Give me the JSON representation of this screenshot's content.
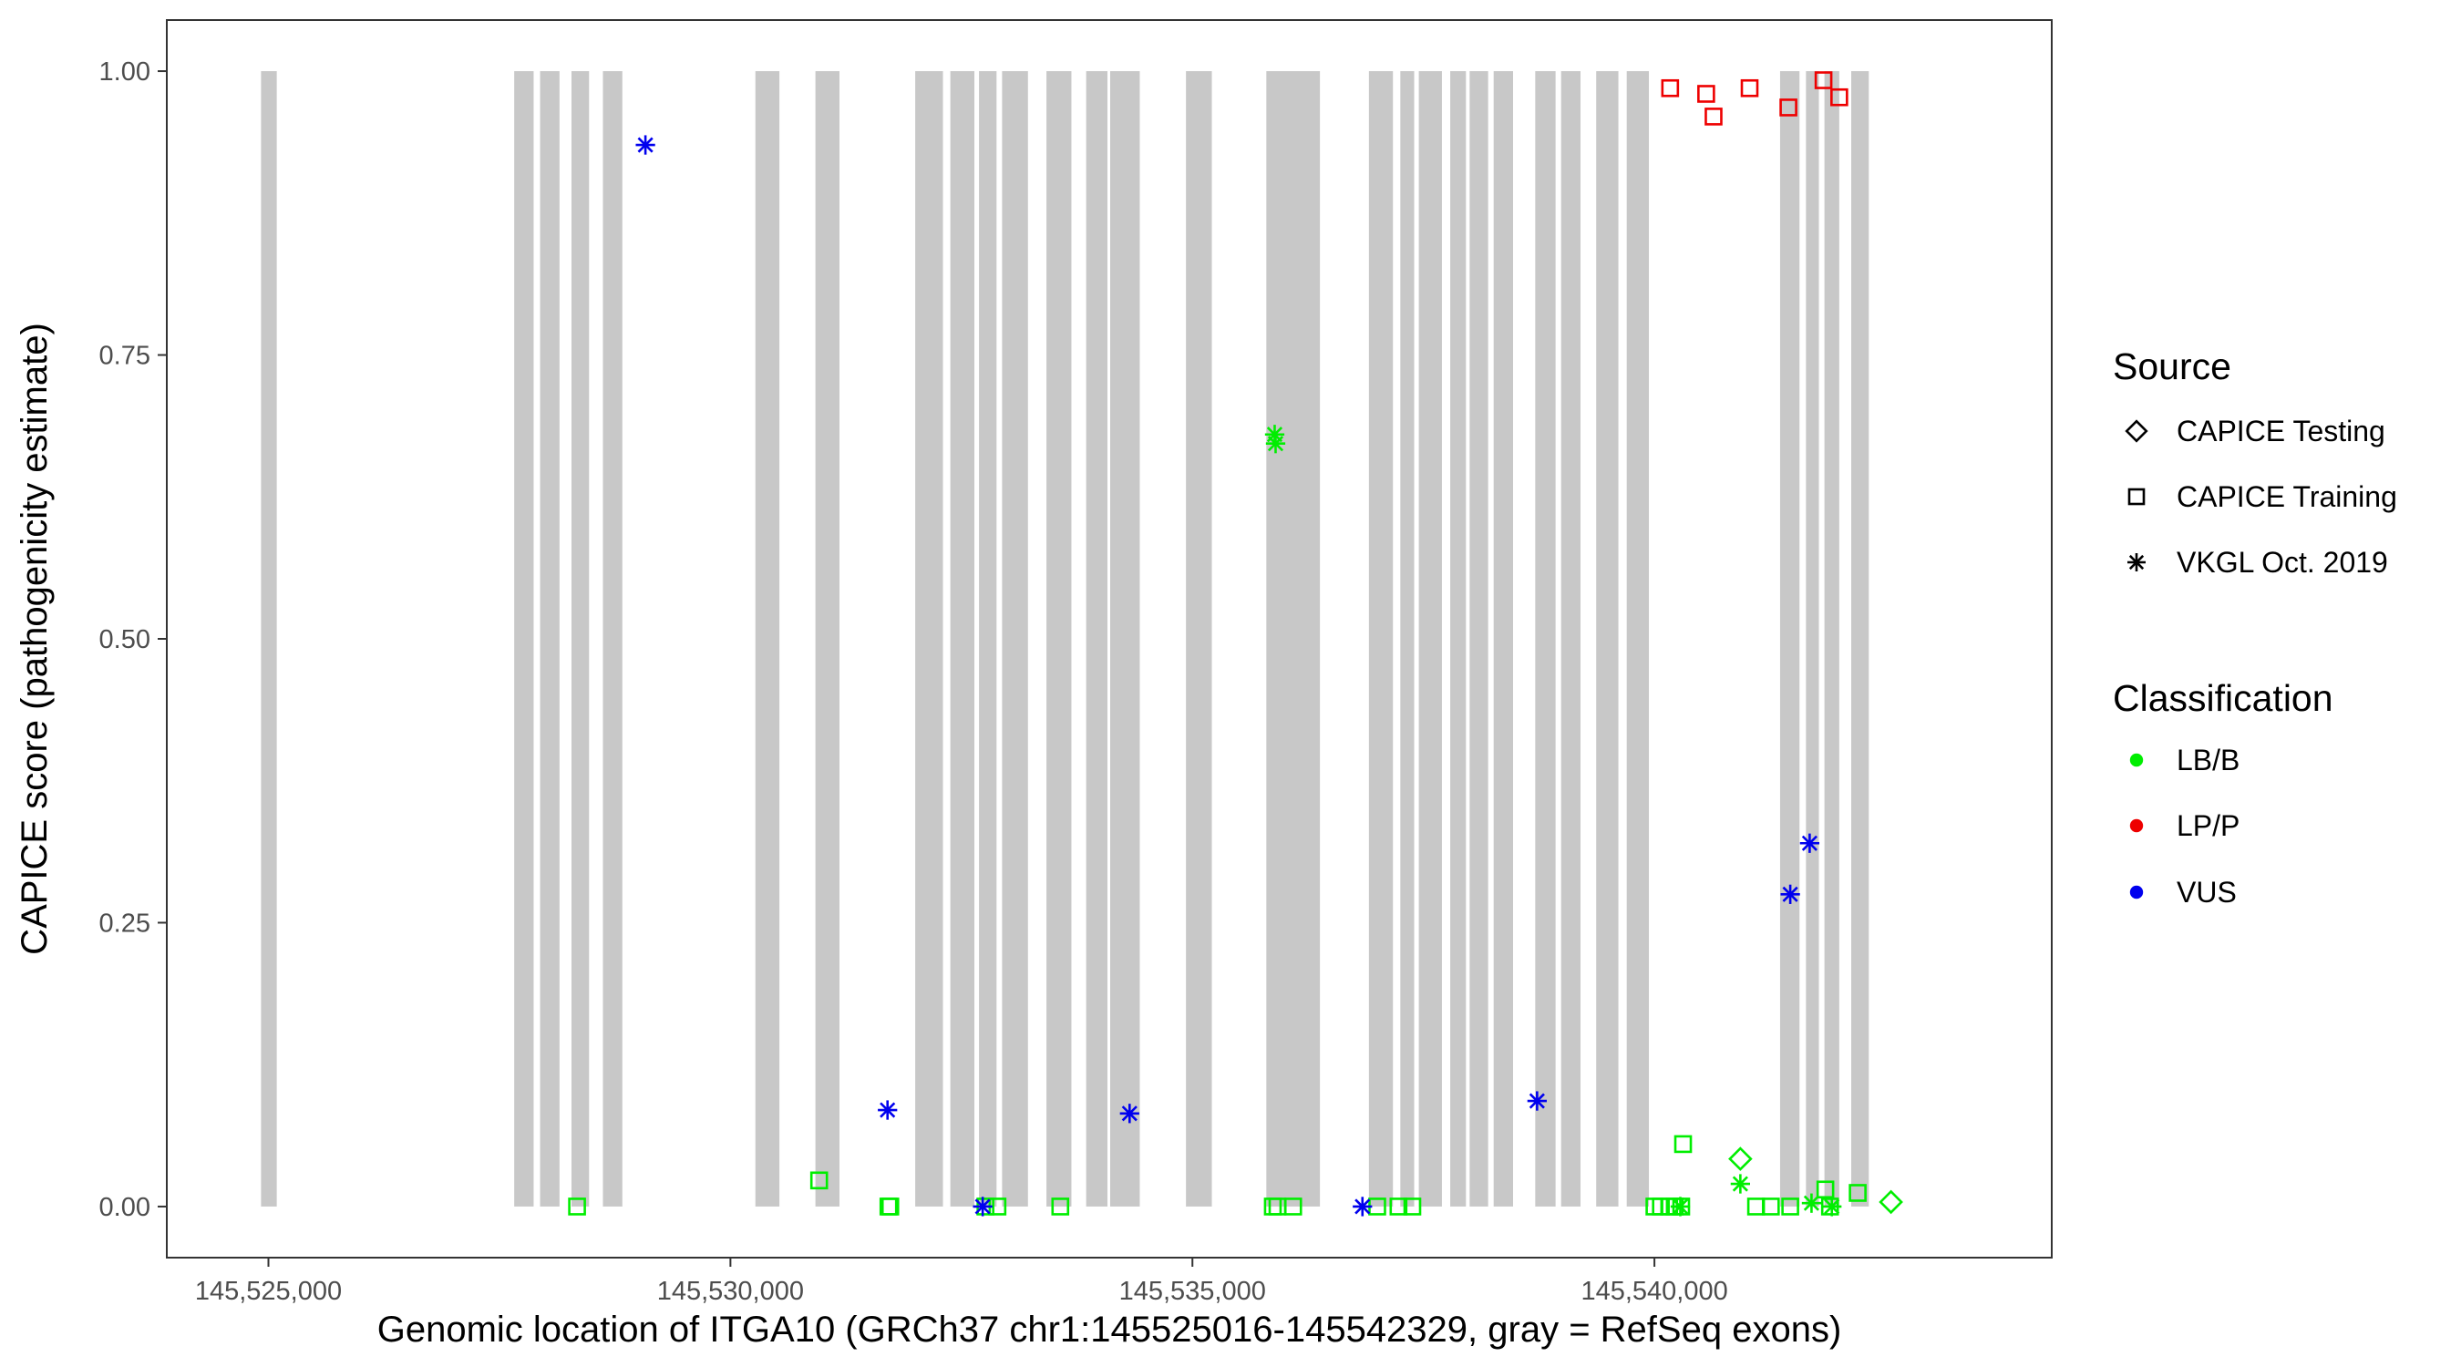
{
  "chart_data": {
    "type": "scatter",
    "xlabel": "Genomic location of ITGA10 (GRCh37 chr1:145525016-145542329, gray = RefSeq exons)",
    "ylabel": "CAPICE score (pathogenicity estimate)",
    "xlim": [
      145523900,
      145544300
    ],
    "ylim": [
      -0.045,
      1.045
    ],
    "x_ticks": [
      145525000,
      145530000,
      145535000,
      145540000
    ],
    "x_tick_labels": [
      "145,525,000",
      "145,530,000",
      "145,535,000",
      "145,540,000"
    ],
    "y_ticks": [
      0,
      0.25,
      0.5,
      0.75,
      1.0
    ],
    "y_tick_labels": [
      "0.00",
      "0.25",
      "0.50",
      "0.75",
      "1.00"
    ],
    "grid": false,
    "exon_color": "#c8c8c8",
    "exons": [
      [
        145524920,
        145525090
      ],
      [
        145527660,
        145527870
      ],
      [
        145527940,
        145528150
      ],
      [
        145528280,
        145528470
      ],
      [
        145528620,
        145528830
      ],
      [
        145530270,
        145530530
      ],
      [
        145530920,
        145531180
      ],
      [
        145532000,
        145532300
      ],
      [
        145532380,
        145532640
      ],
      [
        145532690,
        145532880
      ],
      [
        145532940,
        145533220
      ],
      [
        145533420,
        145533690
      ],
      [
        145533850,
        145534080
      ],
      [
        145534110,
        145534430
      ],
      [
        145534930,
        145535210
      ],
      [
        145535800,
        145536380
      ],
      [
        145536910,
        145537170
      ],
      [
        145537250,
        145537400
      ],
      [
        145537450,
        145537700
      ],
      [
        145537790,
        145537960
      ],
      [
        145538000,
        145538200
      ],
      [
        145538260,
        145538470
      ],
      [
        145538710,
        145538930
      ],
      [
        145538990,
        145539200
      ],
      [
        145539370,
        145539610
      ],
      [
        145539700,
        145539940
      ],
      [
        145541360,
        145541570
      ],
      [
        145541640,
        145541780
      ],
      [
        145541840,
        145542000
      ],
      [
        145542130,
        145542320
      ]
    ],
    "legend": {
      "placement": "right",
      "source": {
        "title": "Source",
        "entries": [
          {
            "label": "CAPICE Testing",
            "shape": "diamond"
          },
          {
            "label": "CAPICE Training",
            "shape": "square"
          },
          {
            "label": "VKGL Oct. 2019",
            "shape": "asterisk"
          }
        ]
      },
      "classification": {
        "title": "Classification",
        "entries": [
          {
            "label": "LB/B",
            "color": "#00ee00"
          },
          {
            "label": "LP/P",
            "color": "#ee0000"
          },
          {
            "label": "VUS",
            "color": "#0000ee"
          }
        ]
      }
    },
    "series": [
      {
        "source": "CAPICE Training",
        "classification": "LP/P",
        "shape": "square",
        "color": "#ee0000",
        "x": [
          145540170,
          145540560,
          145540640,
          145541030,
          145541450,
          145541830,
          145542000
        ],
        "y": [
          0.985,
          0.98,
          0.96,
          0.985,
          0.968,
          0.992,
          0.977
        ]
      },
      {
        "source": "CAPICE Training",
        "classification": "LB/B",
        "shape": "square",
        "color": "#00ee00",
        "x": [
          145528340,
          145530960,
          145531710,
          145531730,
          145532760,
          145532890,
          145533570,
          145535870,
          145535920,
          145536090,
          145537000,
          145537230,
          145537380,
          145540000,
          145540070,
          145540160,
          145540220,
          145540290,
          145540310,
          145541100,
          145541260,
          145541470,
          145541850,
          145541900,
          145542200
        ],
        "y": [
          0.0,
          0.023,
          0.0,
          0.0,
          0.0,
          0.0,
          0.0,
          0.0,
          0.0,
          0.0,
          0.0,
          0.0,
          0.0,
          0.0,
          0.0,
          0.0,
          0.0,
          0.0,
          0.055,
          0.0,
          0.0,
          0.0,
          0.015,
          0.0,
          0.012
        ]
      },
      {
        "source": "CAPICE Testing",
        "classification": "LB/B",
        "shape": "diamond",
        "color": "#00ee00",
        "x": [
          145540930,
          145542560
        ],
        "y": [
          0.042,
          0.004
        ]
      },
      {
        "source": "VKGL Oct. 2019",
        "classification": "VUS",
        "shape": "asterisk",
        "color": "#0000ee",
        "x": [
          145529080,
          145531700,
          145532730,
          145534320,
          145536840,
          145538730,
          145541470,
          145541680
        ],
        "y": [
          0.935,
          0.085,
          0.0,
          0.082,
          0.0,
          0.093,
          0.275,
          0.32
        ]
      },
      {
        "source": "VKGL Oct. 2019",
        "classification": "LB/B",
        "shape": "asterisk",
        "color": "#00ee00",
        "x": [
          145535890,
          145535900,
          145540280,
          145540930,
          145541700,
          145541920
        ],
        "y": [
          0.68,
          0.672,
          0.0,
          0.02,
          0.003,
          0.0
        ]
      }
    ]
  }
}
